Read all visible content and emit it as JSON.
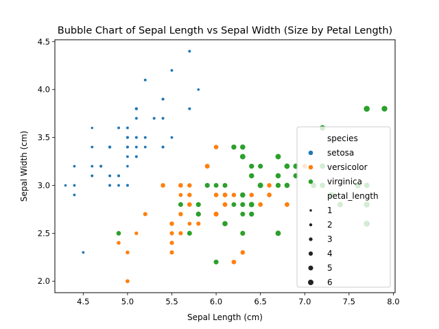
{
  "chart_data": {
    "type": "scatter",
    "title": "Bubble Chart of Sepal Length vs Sepal Width (Size by Petal Length)",
    "xlabel": "Sepal Length (cm)",
    "ylabel": "Sepal Width (cm)",
    "xlim": [
      4.18,
      8.02
    ],
    "ylim": [
      1.88,
      4.52
    ],
    "xticks": [
      4.5,
      5.0,
      5.5,
      6.0,
      6.5,
      7.0,
      7.5,
      8.0
    ],
    "yticks": [
      2.0,
      2.5,
      3.0,
      3.5,
      4.0,
      4.5
    ],
    "xtick_labels": [
      "4.5",
      "5.0",
      "5.5",
      "6.0",
      "6.5",
      "7.0",
      "7.5",
      "8.0"
    ],
    "ytick_labels": [
      "2.0",
      "2.5",
      "3.0",
      "3.5",
      "4.0",
      "4.5"
    ],
    "grid": false,
    "legend": {
      "placement": "center-right",
      "hue_title": "species",
      "size_title": "petal_length",
      "size_entries": [
        {
          "label": "1",
          "value": 1
        },
        {
          "label": "2",
          "value": 2
        },
        {
          "label": "3",
          "value": 3
        },
        {
          "label": "4",
          "value": 4
        },
        {
          "label": "5",
          "value": 5
        },
        {
          "label": "6",
          "value": 6
        }
      ]
    },
    "series": [
      {
        "name": "setosa",
        "color": "#1f77b4",
        "points": [
          [
            5.1,
            3.5,
            1.4
          ],
          [
            4.9,
            3.0,
            1.4
          ],
          [
            4.7,
            3.2,
            1.3
          ],
          [
            4.6,
            3.1,
            1.5
          ],
          [
            5.0,
            3.6,
            1.4
          ],
          [
            5.4,
            3.9,
            1.7
          ],
          [
            4.6,
            3.4,
            1.4
          ],
          [
            5.0,
            3.4,
            1.5
          ],
          [
            4.4,
            2.9,
            1.4
          ],
          [
            4.9,
            3.1,
            1.5
          ],
          [
            5.4,
            3.7,
            1.5
          ],
          [
            4.8,
            3.4,
            1.6
          ],
          [
            4.8,
            3.0,
            1.4
          ],
          [
            4.3,
            3.0,
            1.1
          ],
          [
            5.8,
            4.0,
            1.2
          ],
          [
            5.7,
            4.4,
            1.5
          ],
          [
            5.4,
            3.9,
            1.3
          ],
          [
            5.1,
            3.5,
            1.4
          ],
          [
            5.7,
            3.8,
            1.7
          ],
          [
            5.1,
            3.8,
            1.5
          ],
          [
            5.4,
            3.4,
            1.7
          ],
          [
            5.1,
            3.7,
            1.5
          ],
          [
            4.6,
            3.6,
            1.0
          ],
          [
            5.1,
            3.3,
            1.7
          ],
          [
            4.8,
            3.4,
            1.9
          ],
          [
            5.0,
            3.0,
            1.6
          ],
          [
            5.0,
            3.4,
            1.6
          ],
          [
            5.2,
            3.5,
            1.5
          ],
          [
            5.2,
            3.4,
            1.4
          ],
          [
            4.7,
            3.2,
            1.6
          ],
          [
            4.8,
            3.1,
            1.6
          ],
          [
            5.4,
            3.4,
            1.5
          ],
          [
            5.2,
            4.1,
            1.5
          ],
          [
            5.5,
            4.2,
            1.4
          ],
          [
            4.9,
            3.1,
            1.5
          ],
          [
            5.0,
            3.2,
            1.2
          ],
          [
            5.5,
            3.5,
            1.3
          ],
          [
            4.9,
            3.6,
            1.4
          ],
          [
            4.4,
            3.0,
            1.3
          ],
          [
            5.1,
            3.4,
            1.5
          ],
          [
            5.0,
            3.5,
            1.3
          ],
          [
            4.5,
            2.3,
            1.3
          ],
          [
            4.4,
            3.2,
            1.3
          ],
          [
            5.0,
            3.5,
            1.6
          ],
          [
            5.1,
            3.8,
            1.9
          ],
          [
            4.8,
            3.0,
            1.4
          ],
          [
            5.1,
            3.8,
            1.6
          ],
          [
            4.6,
            3.2,
            1.4
          ],
          [
            5.3,
            3.7,
            1.5
          ],
          [
            5.0,
            3.3,
            1.4
          ]
        ]
      },
      {
        "name": "versicolor",
        "color": "#ff7f0e",
        "points": [
          [
            7.0,
            3.2,
            4.7
          ],
          [
            6.4,
            3.2,
            4.5
          ],
          [
            6.9,
            3.1,
            4.9
          ],
          [
            5.5,
            2.3,
            4.0
          ],
          [
            6.5,
            2.8,
            4.6
          ],
          [
            5.7,
            2.8,
            4.5
          ],
          [
            6.3,
            3.3,
            4.7
          ],
          [
            4.9,
            2.4,
            3.3
          ],
          [
            6.6,
            2.9,
            4.6
          ],
          [
            5.2,
            2.7,
            3.9
          ],
          [
            5.0,
            2.0,
            3.5
          ],
          [
            5.9,
            3.0,
            4.2
          ],
          [
            6.0,
            2.2,
            4.0
          ],
          [
            6.1,
            2.9,
            4.7
          ],
          [
            5.6,
            2.9,
            3.6
          ],
          [
            6.7,
            3.1,
            4.4
          ],
          [
            5.6,
            3.0,
            4.5
          ],
          [
            5.8,
            2.7,
            4.1
          ],
          [
            6.2,
            2.2,
            4.5
          ],
          [
            5.6,
            2.5,
            3.9
          ],
          [
            5.9,
            3.2,
            4.8
          ],
          [
            6.1,
            2.8,
            4.0
          ],
          [
            6.3,
            2.5,
            4.9
          ],
          [
            6.1,
            2.8,
            4.7
          ],
          [
            6.4,
            2.9,
            4.3
          ],
          [
            6.6,
            3.0,
            4.4
          ],
          [
            6.8,
            2.8,
            4.8
          ],
          [
            6.7,
            3.0,
            5.0
          ],
          [
            6.0,
            2.9,
            4.5
          ],
          [
            5.7,
            2.6,
            3.5
          ],
          [
            5.5,
            2.4,
            3.8
          ],
          [
            5.5,
            2.4,
            3.7
          ],
          [
            5.8,
            2.7,
            3.9
          ],
          [
            6.0,
            2.7,
            5.1
          ],
          [
            5.4,
            3.0,
            4.5
          ],
          [
            6.0,
            3.4,
            4.5
          ],
          [
            6.7,
            3.1,
            4.7
          ],
          [
            6.3,
            2.3,
            4.4
          ],
          [
            5.6,
            3.0,
            4.1
          ],
          [
            5.5,
            2.5,
            4.0
          ],
          [
            5.5,
            2.6,
            4.4
          ],
          [
            6.1,
            3.0,
            4.6
          ],
          [
            5.8,
            2.6,
            4.0
          ],
          [
            5.0,
            2.3,
            3.3
          ],
          [
            5.6,
            2.7,
            4.2
          ],
          [
            5.7,
            3.0,
            4.2
          ],
          [
            5.7,
            2.9,
            4.2
          ],
          [
            6.2,
            2.9,
            4.3
          ],
          [
            5.1,
            2.5,
            3.0
          ],
          [
            5.7,
            2.8,
            4.1
          ]
        ]
      },
      {
        "name": "virginica",
        "color": "#2ca02c",
        "points": [
          [
            6.3,
            3.3,
            6.0
          ],
          [
            5.8,
            2.7,
            5.1
          ],
          [
            7.1,
            3.0,
            5.9
          ],
          [
            6.3,
            2.9,
            5.6
          ],
          [
            6.5,
            3.0,
            5.8
          ],
          [
            7.6,
            3.0,
            6.6
          ],
          [
            4.9,
            2.5,
            4.5
          ],
          [
            7.3,
            2.9,
            6.3
          ],
          [
            6.7,
            2.5,
            5.8
          ],
          [
            7.2,
            3.6,
            6.1
          ],
          [
            6.5,
            3.2,
            5.1
          ],
          [
            6.4,
            2.7,
            5.3
          ],
          [
            6.8,
            3.0,
            5.5
          ],
          [
            5.7,
            2.5,
            5.0
          ],
          [
            5.8,
            2.8,
            5.1
          ],
          [
            6.4,
            3.2,
            5.3
          ],
          [
            6.5,
            3.0,
            5.5
          ],
          [
            7.7,
            3.8,
            6.7
          ],
          [
            7.7,
            2.6,
            6.9
          ],
          [
            6.0,
            2.2,
            5.0
          ],
          [
            6.9,
            3.2,
            5.7
          ],
          [
            5.6,
            2.8,
            4.9
          ],
          [
            7.7,
            2.8,
            6.7
          ],
          [
            6.3,
            2.7,
            4.9
          ],
          [
            6.7,
            3.3,
            5.7
          ],
          [
            7.2,
            3.2,
            6.0
          ],
          [
            6.2,
            2.8,
            4.8
          ],
          [
            6.1,
            3.0,
            4.9
          ],
          [
            6.4,
            2.8,
            5.6
          ],
          [
            7.2,
            3.0,
            5.8
          ],
          [
            7.4,
            2.8,
            6.1
          ],
          [
            7.9,
            3.8,
            6.4
          ],
          [
            6.4,
            2.8,
            5.6
          ],
          [
            6.3,
            2.8,
            5.1
          ],
          [
            6.1,
            2.6,
            5.6
          ],
          [
            7.7,
            3.0,
            6.1
          ],
          [
            6.3,
            3.4,
            5.6
          ],
          [
            6.4,
            3.1,
            5.5
          ],
          [
            6.0,
            3.0,
            4.8
          ],
          [
            6.9,
            3.1,
            5.4
          ],
          [
            6.7,
            3.1,
            5.6
          ],
          [
            6.9,
            3.1,
            5.1
          ],
          [
            5.8,
            2.7,
            5.1
          ],
          [
            6.8,
            3.2,
            5.9
          ],
          [
            6.7,
            3.3,
            5.7
          ],
          [
            6.7,
            3.0,
            5.2
          ],
          [
            6.3,
            2.5,
            5.0
          ],
          [
            6.5,
            3.0,
            5.2
          ],
          [
            6.2,
            3.4,
            5.4
          ],
          [
            5.9,
            3.0,
            5.1
          ]
        ]
      }
    ]
  }
}
